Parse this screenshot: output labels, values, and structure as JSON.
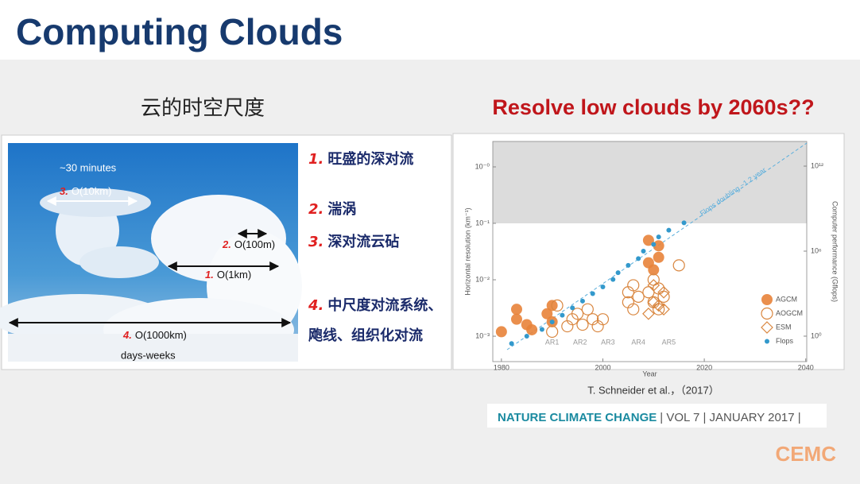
{
  "header": {
    "title": "Computing Clouds"
  },
  "left": {
    "subtitle": "云的时空尺度",
    "photo_labels": [
      {
        "text": "~30 minutes"
      },
      {
        "num": "3.",
        "text": "O(10km)"
      },
      {
        "num": "2.",
        "text": "O(100m)"
      },
      {
        "num": "1.",
        "text": "O(1km)"
      },
      {
        "num": "4.",
        "text": "O(1000km)"
      },
      {
        "text": "days-weeks"
      }
    ],
    "items": [
      {
        "num": "1.",
        "text": "旺盛的深对流"
      },
      {
        "num": "2.",
        "text": "湍涡"
      },
      {
        "num": "3.",
        "text": "深对流云砧"
      },
      {
        "num": "4.",
        "text": "中尺度对流系统、"
      },
      {
        "text": "飑线、组织化对流"
      }
    ]
  },
  "right": {
    "title": "Resolve low clouds by 2060s??",
    "chart_data": {
      "type": "scatter",
      "xlabel": "Year",
      "ylabel": "Horizontal resolution (km⁻¹)",
      "y2label": "Computer performance (Gflops)",
      "xlim": [
        1978.3,
        2040.2
      ],
      "xticks": [
        1980,
        2000,
        2020,
        2040
      ],
      "yscale": "log",
      "ylim": [
        0.000355,
        2.82
      ],
      "yticks": [
        {
          "value": 0.001,
          "label": "10⁻³"
        },
        {
          "value": 0.01,
          "label": "10⁻²"
        },
        {
          "value": 0.1,
          "label": "10⁻¹"
        },
        {
          "value": 1,
          "label": "10⁻⁰"
        }
      ],
      "y2scale": "log",
      "y2lim": [
        0.016,
        55000000000000.0
      ],
      "y2ticks": [
        {
          "value": 1,
          "label": "10⁰"
        },
        {
          "value": 1000000,
          "label": "10⁶"
        },
        {
          "value": 1000000000000,
          "label": "10¹²"
        }
      ],
      "shade_from": 0.1,
      "trend_label": "Flops doubling ~1.2 year",
      "legend": "lower right",
      "annotations": [
        {
          "label": "AR1",
          "x": 1990
        },
        {
          "label": "AR2",
          "x": 1995.5
        },
        {
          "label": "AR3",
          "x": 2001
        },
        {
          "label": "AR4",
          "x": 2007
        },
        {
          "label": "AR5",
          "x": 2013
        }
      ],
      "series": [
        {
          "name": "AGCM",
          "color": "#e8833a",
          "marker": "filled",
          "x": [
            1980,
            1983,
            1983,
            1985,
            1986,
            1989,
            1990,
            1990,
            2009,
            2009,
            2010,
            2011,
            2011
          ],
          "values": [
            0.0012,
            0.002,
            0.003,
            0.0016,
            0.0013,
            0.0025,
            0.0035,
            0.0018,
            0.05,
            0.02,
            0.015,
            0.04,
            0.025
          ]
        },
        {
          "name": "AOGCM",
          "color": "#d9863f",
          "marker": "open",
          "x": [
            1990,
            1991,
            1993,
            1994,
            1995,
            1996,
            1997,
            1998,
            1999,
            2000,
            2005,
            2005,
            2006,
            2006,
            2007,
            2009,
            2010,
            2010,
            2011,
            2011,
            2012,
            2015
          ],
          "values": [
            0.0012,
            0.0035,
            0.0015,
            0.002,
            0.0025,
            0.0016,
            0.003,
            0.002,
            0.0015,
            0.002,
            0.004,
            0.006,
            0.003,
            0.008,
            0.005,
            0.006,
            0.004,
            0.01,
            0.007,
            0.003,
            0.005,
            0.018
          ]
        },
        {
          "name": "ESM",
          "color": "#d9863f",
          "marker": "diamond",
          "x": [
            2009,
            2010,
            2010,
            2011,
            2012,
            2012
          ],
          "values": [
            0.0025,
            0.004,
            0.008,
            0.0035,
            0.006,
            0.003
          ]
        },
        {
          "name": "Flops",
          "color": "#3399cc",
          "marker": "dot",
          "axis": "y2",
          "x": [
            1982,
            1985,
            1988,
            1990,
            1992,
            1994,
            1996,
            1998,
            2000,
            2002,
            2003,
            2005,
            2007,
            2008,
            2010,
            2011,
            2013,
            2016
          ],
          "values": [
            0.3,
            1,
            3,
            10,
            30,
            100,
            300,
            1000,
            3000,
            10000,
            30000,
            100000,
            300000,
            1000000,
            3000000,
            10000000,
            30000000,
            100000000
          ]
        }
      ]
    },
    "citation": "T. Schneider et al.，（2017）",
    "journal": "NATURE CLIMATE CHANGE",
    "journal_info": "| VOL 7 | JANUARY 2017 |"
  },
  "logo": "CEMC"
}
